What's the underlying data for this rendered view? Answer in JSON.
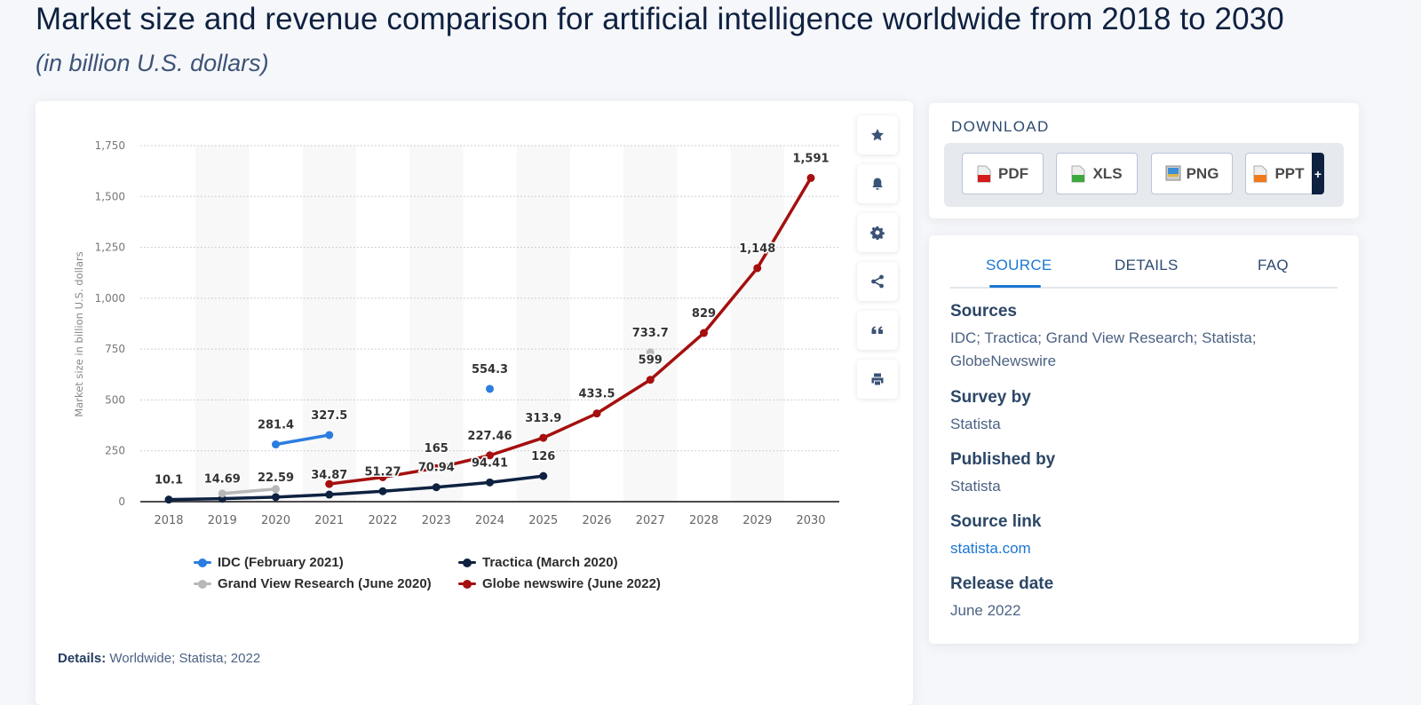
{
  "header": {
    "title": "Market size and revenue comparison for artificial intelligence worldwide from 2018 to 2030",
    "subtitle": "(in billion U.S. dollars)"
  },
  "toolbar": {
    "buttons": [
      {
        "name": "favorite",
        "icon": "star-icon"
      },
      {
        "name": "notifications",
        "icon": "bell-icon"
      },
      {
        "name": "settings",
        "icon": "gear-icon"
      },
      {
        "name": "share",
        "icon": "share-icon"
      },
      {
        "name": "cite",
        "icon": "quote-icon"
      },
      {
        "name": "print",
        "icon": "printer-icon"
      }
    ]
  },
  "chart_data": {
    "type": "line",
    "title": "Market size and revenue comparison for artificial intelligence worldwide from 2018 to 2030",
    "subtitle": "(in billion U.S. dollars)",
    "xlabel": "",
    "ylabel": "Market size in billion U.S. dollars",
    "x": [
      "2018",
      "2019",
      "2020",
      "2021",
      "2022",
      "2023",
      "2024",
      "2025",
      "2026",
      "2027",
      "2028",
      "2029",
      "2030"
    ],
    "ylim": [
      0,
      1750
    ],
    "yticks": [
      0,
      250,
      500,
      750,
      1000,
      1250,
      1500,
      1750
    ],
    "ytick_labels": [
      "0",
      "250",
      "500",
      "750",
      "1,000",
      "1,250",
      "1,500",
      "1,750"
    ],
    "grid": true,
    "legend_position": "bottom",
    "series": [
      {
        "name": "IDC (February 2021)",
        "color": "#2b7de0",
        "values": [
          null,
          null,
          281.4,
          327.5,
          null,
          null,
          554.3,
          null,
          null,
          null,
          null,
          null,
          null
        ],
        "labels": [
          null,
          null,
          "281.4",
          "327.5",
          null,
          null,
          "554.3",
          null,
          null,
          null,
          null,
          null,
          null
        ]
      },
      {
        "name": "Tractica (March 2020)",
        "color": "#0e2140",
        "values": [
          10.1,
          14.69,
          22.59,
          34.87,
          51.27,
          70.94,
          94.41,
          126,
          null,
          null,
          null,
          null,
          null
        ],
        "labels": [
          "10.1",
          "14.69",
          "22.59",
          "34.87",
          "51.27",
          "70.94",
          "94.41",
          "126",
          null,
          null,
          null,
          null,
          null
        ]
      },
      {
        "name": "Grand View Research (June 2020)",
        "color": "#b8b8b8",
        "values": [
          null,
          40,
          62,
          null,
          null,
          null,
          null,
          null,
          null,
          733.7,
          null,
          null,
          null
        ],
        "labels": [
          null,
          null,
          null,
          null,
          null,
          null,
          null,
          null,
          null,
          "733.7",
          null,
          null,
          null
        ]
      },
      {
        "name": "Globe newswire (June 2022)",
        "color": "#a50f0f",
        "values": [
          null,
          null,
          null,
          87,
          120,
          165,
          227.46,
          313.9,
          433.5,
          599,
          829,
          1148,
          1591
        ],
        "labels": [
          null,
          null,
          null,
          null,
          null,
          "165",
          "227.46",
          "313.9",
          "433.5",
          "599",
          "829",
          "1,148",
          "1,591"
        ]
      }
    ]
  },
  "legend": [
    {
      "label": "IDC (February 2021)",
      "color": "#2b7de0"
    },
    {
      "label": "Tractica (March 2020)",
      "color": "#0e2140"
    },
    {
      "label": "Grand View Research (June 2020)",
      "color": "#b8b8b8"
    },
    {
      "label": "Globe newswire (June 2022)",
      "color": "#a50f0f"
    }
  ],
  "details": {
    "label": "Details:",
    "value": "Worldwide; Statista; 2022"
  },
  "download": {
    "title": "DOWNLOAD",
    "buttons": [
      {
        "label": "PDF",
        "icon": "pdf-file-icon",
        "color": "#d41c1c"
      },
      {
        "label": "XLS",
        "icon": "xls-file-icon",
        "color": "#3ea83e"
      },
      {
        "label": "PNG",
        "icon": "png-file-icon",
        "color": "#3b8fd6"
      },
      {
        "label": "PPT",
        "icon": "ppt-file-icon",
        "color": "#f07b1d"
      }
    ],
    "plus_label": "+"
  },
  "info": {
    "tabs": [
      {
        "label": "SOURCE",
        "active": true
      },
      {
        "label": "DETAILS",
        "active": false
      },
      {
        "label": "FAQ",
        "active": false
      }
    ],
    "sections": [
      {
        "heading": "Sources",
        "value": "IDC; Tractica; Grand View Research; Statista; GlobeNewswire"
      },
      {
        "heading": "Survey by",
        "value": "Statista"
      },
      {
        "heading": "Published by",
        "value": "Statista"
      },
      {
        "heading": "Source link",
        "value": "statista.com"
      },
      {
        "heading": "Release date",
        "value": "June 2022"
      }
    ]
  },
  "colors": {
    "accent": "#1b77d2",
    "navy": "#0e2140"
  }
}
